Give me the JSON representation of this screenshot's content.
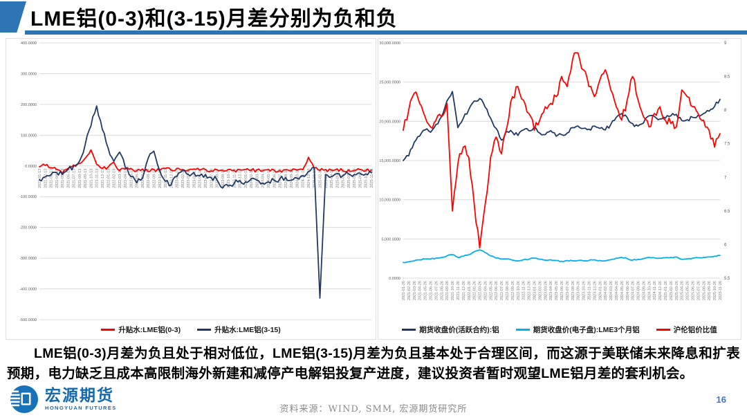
{
  "slide": {
    "title": "LME铝(0-3)和(3-15)月差分别为负和负",
    "accent_color": "#2e75b6",
    "page_number": "16"
  },
  "body_text": "LME铝(0-3)月差为负且处于相对低位，LME铝(3-15)月差为负且基本处于合理区间，而这源于美联储未来降息和扩表预期，电力缺乏且成本高限制海外新建和减停产电解铝投复产进度，建议投资者暂时观望LME铝月差的套利机会。",
  "footer": {
    "logo_cn": "宏源期货",
    "logo_en": "HONGYUAN FUTURES",
    "source": "资料来源：WIND, SMM, 宏源期货研究所"
  },
  "chart_data": [
    {
      "type": "line",
      "grid": "horizontal",
      "legend_position": "bottom",
      "y_axis": {
        "min": -500,
        "max": 400,
        "step": 100,
        "tick_labels": [
          "400.0000",
          "300.0000",
          "200.0000",
          "100.0000",
          "0.0000",
          "-100.0000",
          "-200.0000",
          "-300.0000",
          "-400.0000",
          "-500.0000"
        ]
      },
      "x": [
        "2021-01-13",
        "2021-02-13",
        "2021-03-13",
        "2021-04-13",
        "2021-05-13",
        "2021-06-13",
        "2021-07-13",
        "2021-08-13",
        "2021-09-13",
        "2021-10-13",
        "2021-11-13",
        "2021-12-13",
        "2022-01-13",
        "2022-02-13",
        "2022-03-13",
        "2022-04-13",
        "2022-05-13",
        "2022-06-13",
        "2022-07-13",
        "2022-08-13",
        "2022-09-13",
        "2022-10-13",
        "2022-11-13",
        "2022-12-13",
        "2023-01-13",
        "2023-02-13",
        "2023-03-13",
        "2023-04-13",
        "2023-05-13",
        "2023-06-13",
        "2023-07-13",
        "2023-08-13",
        "2023-09-13",
        "2023-10-13",
        "2023-11-13",
        "2023-12-13",
        "2024-01-13",
        "2024-02-13",
        "2024-03-13",
        "2024-04-13",
        "2024-05-13",
        "2024-06-13",
        "2024-07-13",
        "2024-08-13",
        "2024-09-13",
        "2024-10-13",
        "2024-11-13",
        "2024-12-13",
        "2025-01-13",
        "2025-02-13",
        "2025-03-13",
        "2025-04-13",
        "2025-05-13",
        "2025-06-13",
        "2025-07-13",
        "2025-08-13",
        "2025-09-13",
        "2025-10-13",
        "2025-11-13"
      ],
      "series": [
        {
          "name": "升贴水:LME铝(0-3)",
          "color": "#ff0000",
          "axis": "left",
          "values": [
            -3,
            2,
            -6,
            -12,
            -25,
            -8,
            3,
            8,
            25,
            52,
            5,
            -8,
            -4,
            12,
            -16,
            -10,
            -8,
            -16,
            -10,
            -18,
            -12,
            -16,
            -8,
            -14,
            -8,
            -12,
            -15,
            -10,
            -14,
            -12,
            -16,
            -13,
            -15,
            -12,
            -14,
            -13,
            -12,
            -15,
            -13,
            -16,
            -12,
            -14,
            -15,
            -13,
            -16,
            -14,
            -12,
            28,
            -8,
            -15,
            -12,
            -14,
            -10,
            -16,
            -13,
            -15,
            -12,
            -16,
            -14
          ]
        },
        {
          "name": "升贴水:LME铝(3-15)",
          "color": "#1f3864",
          "axis": "left",
          "values": [
            -45,
            -36,
            -30,
            -22,
            -28,
            -12,
            0,
            15,
            70,
            130,
            195,
            118,
            58,
            15,
            45,
            -5,
            -35,
            -55,
            -40,
            25,
            48,
            -15,
            -50,
            -62,
            -35,
            -15,
            -28,
            -22,
            -32,
            -28,
            -38,
            -45,
            -72,
            -65,
            -58,
            -48,
            -52,
            -42,
            -46,
            -56,
            -52,
            -46,
            -42,
            -38,
            -46,
            -40,
            -32,
            -18,
            -5,
            -430,
            -28,
            -35,
            -25,
            -32,
            -26,
            -28,
            -24,
            -26,
            -22
          ]
        }
      ]
    },
    {
      "type": "line",
      "grid": "horizontal",
      "legend_position": "bottom",
      "y_axis_left": {
        "min": 0,
        "max": 30000,
        "step": 5000,
        "tick_labels": [
          "30,000.0000",
          "25,000.0000",
          "20,000.0000",
          "15,000.0000",
          "10,000.0000",
          "5,000.0000",
          "0.0000"
        ]
      },
      "y_axis_right": {
        "min": 5.5,
        "max": 9,
        "step": 0.5,
        "tick_labels": [
          "9",
          "8.5",
          "8",
          "7.5",
          "7",
          "6.5",
          "6",
          "5.5"
        ]
      },
      "x": [
        "2021-01-26",
        "2021-02-26",
        "2021-03-26",
        "2021-04-26",
        "2021-05-26",
        "2021-06-26",
        "2021-07-26",
        "2021-08-26",
        "2021-09-26",
        "2021-10-26",
        "2021-11-26",
        "2021-12-26",
        "2022-01-26",
        "2022-02-26",
        "2022-03-26",
        "2022-04-26",
        "2022-05-26",
        "2022-06-26",
        "2022-07-26",
        "2022-08-26",
        "2022-09-26",
        "2022-10-26",
        "2022-11-26",
        "2022-12-26",
        "2023-01-26",
        "2023-02-26",
        "2023-03-26",
        "2023-04-26",
        "2023-05-26",
        "2023-06-26",
        "2023-07-26",
        "2023-08-26",
        "2023-09-26",
        "2023-10-26",
        "2023-11-26",
        "2023-12-26",
        "2024-01-26",
        "2024-02-26",
        "2024-03-26",
        "2024-04-26",
        "2024-05-26",
        "2024-06-26",
        "2024-07-26",
        "2024-08-26",
        "2024-09-26",
        "2024-10-26",
        "2024-11-26",
        "2024-12-26",
        "2025-01-26",
        "2025-02-26",
        "2025-03-26",
        "2025-04-26",
        "2025-05-26",
        "2025-06-26",
        "2025-07-26",
        "2025-08-26",
        "2025-09-26",
        "2025-10-26",
        "2025-11-26"
      ],
      "series": [
        {
          "name": "期货收盘价(活跃合约):铝",
          "color": "#1f3864",
          "axis": "left",
          "values": [
            15000,
            15600,
            17300,
            18100,
            18900,
            18600,
            19600,
            20600,
            22600,
            23800,
            19200,
            20400,
            21500,
            22600,
            22900,
            21800,
            20400,
            19100,
            17600,
            18700,
            18600,
            18200,
            18900,
            18800,
            19300,
            18500,
            18300,
            18800,
            18100,
            18300,
            18500,
            19200,
            19400,
            19100,
            19000,
            19400,
            19100,
            18900,
            19600,
            20500,
            21000,
            20500,
            19700,
            19400,
            19800,
            20700,
            20600,
            20300,
            20400,
            20700,
            20900,
            20100,
            20200,
            20500,
            20800,
            21000,
            21300,
            21900,
            22800
          ]
        },
        {
          "name": "期货收盘价(电子盘):LME3个月铝",
          "color": "#00b0f0",
          "axis": "left",
          "values": [
            2000,
            2080,
            2210,
            2340,
            2440,
            2450,
            2560,
            2640,
            2840,
            3000,
            2650,
            2800,
            3000,
            3380,
            3600,
            3250,
            2850,
            2550,
            2450,
            2450,
            2300,
            2200,
            2350,
            2400,
            2550,
            2400,
            2300,
            2350,
            2250,
            2150,
            2250,
            2200,
            2250,
            2200,
            2250,
            2350,
            2250,
            2200,
            2350,
            2550,
            2650,
            2500,
            2300,
            2400,
            2500,
            2650,
            2600,
            2550,
            2600,
            2650,
            2700,
            2400,
            2450,
            2550,
            2600,
            2650,
            2700,
            2800,
            2900
          ]
        },
        {
          "name": "沪伦铝价比值",
          "color": "#ff0000",
          "axis": "right",
          "values": [
            7.7,
            8.0,
            8.25,
            8.1,
            7.9,
            7.75,
            7.85,
            7.9,
            8.1,
            6.5,
            7.2,
            7.45,
            7.3,
            6.6,
            5.95,
            6.6,
            7.3,
            7.6,
            7.35,
            7.75,
            8.2,
            8.35,
            8.15,
            7.95,
            7.7,
            7.85,
            8.05,
            8.1,
            8.2,
            8.5,
            8.35,
            8.75,
            8.85,
            8.6,
            8.35,
            8.2,
            8.45,
            8.6,
            8.3,
            8.05,
            7.85,
            8.15,
            8.5,
            8.15,
            7.9,
            7.75,
            7.95,
            8.05,
            7.85,
            7.8,
            7.75,
            8.3,
            8.2,
            8.05,
            7.95,
            7.85,
            7.7,
            7.45,
            7.65
          ]
        }
      ]
    }
  ]
}
